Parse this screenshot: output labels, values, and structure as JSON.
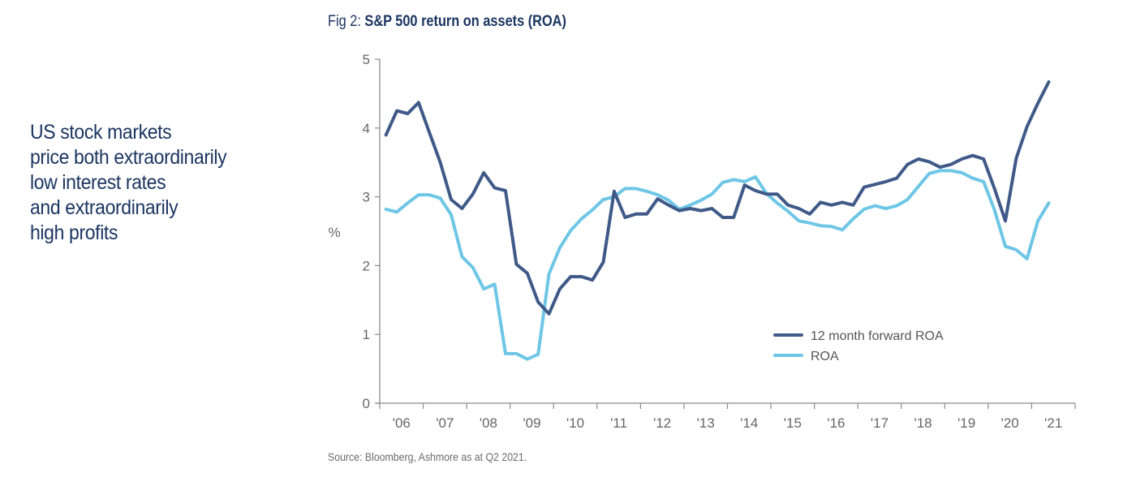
{
  "headline": {
    "lines": [
      "US stock markets",
      "price both extraordinarily",
      "low interest rates",
      "and extraordinarily",
      "high profits"
    ],
    "color": "#1b3561"
  },
  "figure": {
    "prefix": "Fig 2: ",
    "title": "S&P 500 return on assets (ROA)",
    "source": "Source: Bloomberg, Ashmore as at Q2 2021."
  },
  "chart_data": {
    "type": "line",
    "title": "S&P 500 return on assets (ROA)",
    "xlabel": "",
    "ylabel": "%",
    "ylim": [
      0,
      5
    ],
    "yticks": [
      0,
      1,
      2,
      3,
      4,
      5
    ],
    "x_tick_labels": [
      "'06",
      "'07",
      "'08",
      "'09",
      "'10",
      "'11",
      "'12",
      "'13",
      "'14",
      "'15",
      "'16",
      "'17",
      "'18",
      "'19",
      "'20",
      "'21"
    ],
    "x_frequency": "quarterly",
    "x_start": "2006 Q1",
    "grid": false,
    "legend_position": "bottom-right",
    "series": [
      {
        "name": "12 month forward ROA",
        "color": "#3f5a88",
        "values": [
          3.9,
          4.25,
          4.21,
          4.37,
          3.93,
          3.5,
          2.96,
          2.83,
          3.04,
          3.35,
          3.13,
          3.09,
          2.02,
          1.89,
          1.47,
          1.3,
          1.66,
          1.84,
          1.84,
          1.79,
          2.05,
          3.08,
          2.7,
          2.75,
          2.75,
          2.97,
          2.88,
          2.8,
          2.83,
          2.8,
          2.83,
          2.7,
          2.7,
          3.17,
          3.09,
          3.04,
          3.04,
          2.88,
          2.83,
          2.75,
          2.92,
          2.88,
          2.92,
          2.88,
          3.14,
          3.18,
          3.22,
          3.27,
          3.47,
          3.55,
          3.51,
          3.43,
          3.47,
          3.55,
          3.6,
          3.55,
          3.12,
          2.65,
          3.56,
          4.02,
          4.36,
          4.67
        ]
      },
      {
        "name": "ROA",
        "color": "#6ec6e6",
        "values": [
          2.82,
          2.78,
          2.91,
          3.03,
          3.03,
          2.98,
          2.74,
          2.13,
          1.97,
          1.66,
          1.73,
          0.72,
          0.72,
          0.64,
          0.71,
          1.88,
          2.26,
          2.51,
          2.68,
          2.81,
          2.96,
          3.0,
          3.12,
          3.12,
          3.08,
          3.03,
          2.95,
          2.82,
          2.88,
          2.95,
          3.04,
          3.21,
          3.25,
          3.22,
          3.29,
          3.05,
          2.91,
          2.79,
          2.65,
          2.62,
          2.58,
          2.57,
          2.52,
          2.68,
          2.82,
          2.87,
          2.83,
          2.87,
          2.96,
          3.15,
          3.34,
          3.38,
          3.38,
          3.35,
          3.27,
          3.22,
          2.81,
          2.28,
          2.23,
          2.1,
          2.65,
          2.91
        ]
      }
    ]
  }
}
